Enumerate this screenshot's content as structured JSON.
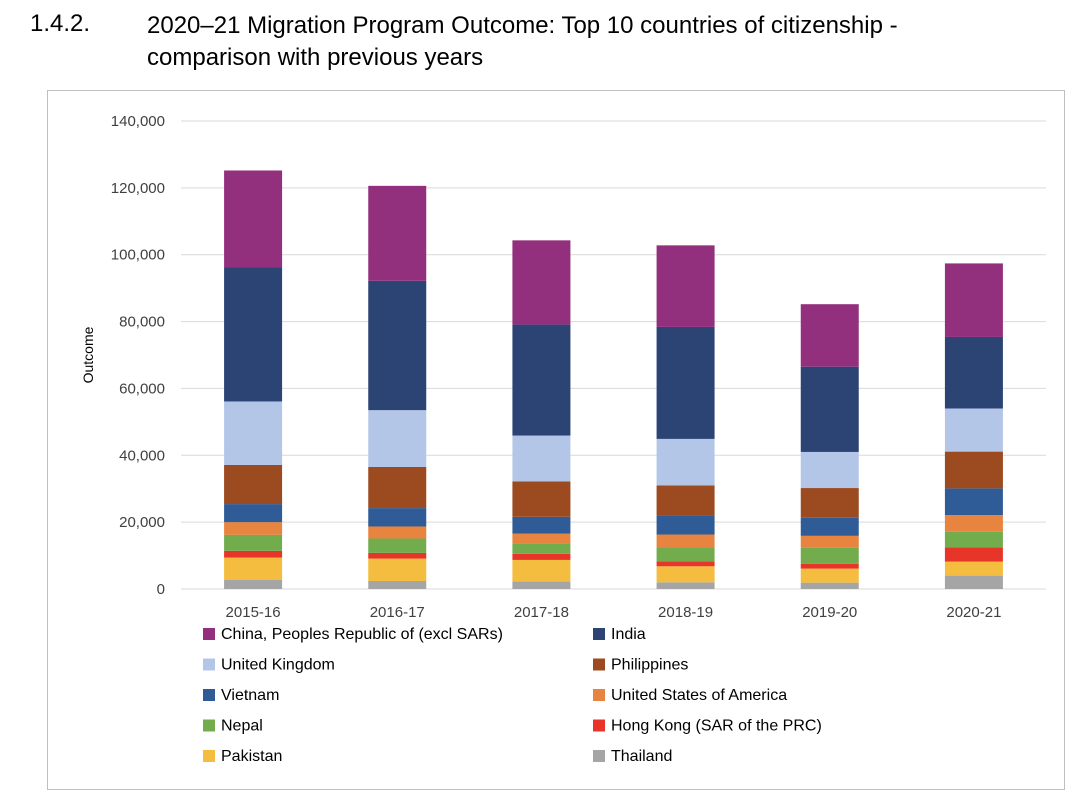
{
  "heading": {
    "number": "1.4.2.",
    "title": "2020–21 Migration Program Outcome: Top 10 countries of citizenship - comparison with previous years"
  },
  "chart_data": {
    "type": "bar",
    "stacked": true,
    "title": "",
    "xlabel": "",
    "ylabel": "Outcome",
    "ylim": [
      0,
      140000
    ],
    "yticks": [
      0,
      20000,
      40000,
      60000,
      80000,
      100000,
      120000,
      140000
    ],
    "ytick_labels": [
      "0",
      "20,000",
      "40,000",
      "60,000",
      "80,000",
      "100,000",
      "120,000",
      "140,000"
    ],
    "grid": true,
    "legend_position": "bottom",
    "categories": [
      "2015-16",
      "2016-17",
      "2017-18",
      "2018-19",
      "2019-20",
      "2020-21"
    ],
    "series": [
      {
        "name": "Thailand",
        "color": "#a5a5a5",
        "values": [
          2800,
          2400,
          2300,
          2000,
          1900,
          4000
        ]
      },
      {
        "name": "Pakistan",
        "color": "#f4bd3f",
        "values": [
          6600,
          6700,
          6400,
          4800,
          4200,
          4200
        ]
      },
      {
        "name": "Hong Kong (SAR of the PRC)",
        "color": "#e8352a",
        "values": [
          2000,
          1700,
          1800,
          1500,
          1400,
          4300
        ]
      },
      {
        "name": "Nepal",
        "color": "#72ac4d",
        "values": [
          4800,
          4300,
          3200,
          4100,
          4800,
          4600
        ]
      },
      {
        "name": "United States of America",
        "color": "#e7843f",
        "values": [
          3800,
          3600,
          2900,
          3900,
          3600,
          5000
        ]
      },
      {
        "name": "Vietnam",
        "color": "#2f5c97",
        "values": [
          5400,
          5500,
          5000,
          5800,
          5400,
          8000
        ]
      },
      {
        "name": "Philippines",
        "color": "#9c4a1f",
        "values": [
          11700,
          12300,
          10600,
          8900,
          8900,
          11000
        ]
      },
      {
        "name": "United Kingdom",
        "color": "#b4c6e7",
        "values": [
          19000,
          17000,
          13700,
          13900,
          10800,
          12900
        ]
      },
      {
        "name": "India",
        "color": "#2b4474",
        "values": [
          40200,
          38700,
          33200,
          33500,
          25500,
          21400
        ]
      },
      {
        "name": "China, Peoples Republic of (excl SARs)",
        "color": "#93307d",
        "values": [
          28900,
          28400,
          25200,
          24400,
          18700,
          22000
        ]
      }
    ],
    "legend_order": [
      "China, Peoples Republic of (excl SARs)",
      "India",
      "United Kingdom",
      "Philippines",
      "Vietnam",
      "United States of America",
      "Nepal",
      "Hong Kong (SAR of the PRC)",
      "Pakistan",
      "Thailand"
    ]
  }
}
